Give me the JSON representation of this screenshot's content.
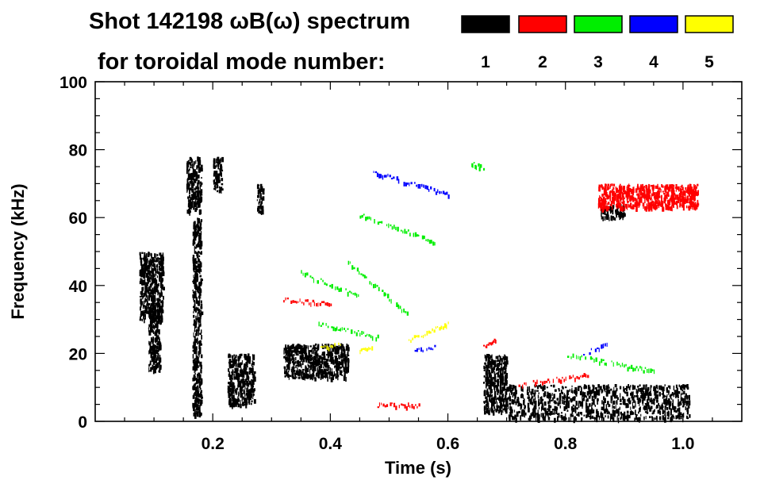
{
  "chart_data": {
    "type": "scatter",
    "title_line1": "Shot 142198 ωB(ω) spectrum",
    "title_line2": "for toroidal mode number:",
    "xlabel": "Time (s)",
    "ylabel": "Frequency (kHz)",
    "xlim": [
      0.0,
      1.1
    ],
    "ylim": [
      0,
      100
    ],
    "x_ticks": [
      0.2,
      0.4,
      0.6,
      0.8,
      1.0
    ],
    "x_tick_labels": [
      "0.2",
      "0.4",
      "0.6",
      "0.8",
      "1.0"
    ],
    "y_ticks": [
      0,
      20,
      40,
      60,
      80,
      100
    ],
    "y_tick_labels": [
      "0",
      "20",
      "40",
      "60",
      "80",
      "100"
    ],
    "legend": [
      {
        "n": "1",
        "color": "#000000"
      },
      {
        "n": "2",
        "color": "#ff0000"
      },
      {
        "n": "3",
        "color": "#00ee00"
      },
      {
        "n": "4",
        "color": "#0000ff"
      },
      {
        "n": "5",
        "color": "#ffff00"
      }
    ],
    "series": [
      {
        "name": "n=1",
        "color": "#000000",
        "regions": [
          {
            "x": [
              0.075,
              0.115
            ],
            "y": [
              30,
              50
            ]
          },
          {
            "x": [
              0.09,
              0.11
            ],
            "y": [
              15,
              35
            ]
          },
          {
            "x": [
              0.155,
              0.18
            ],
            "y": [
              62,
              78
            ]
          },
          {
            "x": [
              0.165,
              0.18
            ],
            "y": [
              2,
              60
            ]
          },
          {
            "x": [
              0.2,
              0.215
            ],
            "y": [
              68,
              78
            ]
          },
          {
            "x": [
              0.225,
              0.27
            ],
            "y": [
              5,
              20
            ]
          },
          {
            "x": [
              0.275,
              0.285
            ],
            "y": [
              62,
              70
            ]
          },
          {
            "x": [
              0.32,
              0.43
            ],
            "y": [
              13,
              23
            ]
          },
          {
            "x": [
              0.66,
              0.7
            ],
            "y": [
              3,
              20
            ]
          },
          {
            "x": [
              0.7,
              1.01
            ],
            "y": [
              1,
              11
            ]
          },
          {
            "x": [
              0.86,
              0.9
            ],
            "y": [
              60,
              64
            ]
          }
        ]
      },
      {
        "name": "n=2",
        "color": "#ff0000",
        "lines": [
          {
            "x": [
              0.32,
              0.4
            ],
            "y": [
              36,
              35
            ]
          },
          {
            "x": [
              0.48,
              0.55
            ],
            "y": [
              5,
              5
            ]
          },
          {
            "x": [
              0.72,
              0.84
            ],
            "y": [
              11,
              14
            ]
          },
          {
            "x": [
              0.66,
              0.68
            ],
            "y": [
              22,
              24
            ]
          }
        ],
        "regions": [
          {
            "x": [
              0.855,
              1.025
            ],
            "y": [
              63,
              70
            ]
          }
        ]
      },
      {
        "name": "n=3",
        "color": "#00ee00",
        "lines": [
          {
            "x": [
              0.45,
              0.58
            ],
            "y": [
              61,
              53
            ]
          },
          {
            "x": [
              0.35,
              0.45
            ],
            "y": [
              44,
              37
            ]
          },
          {
            "x": [
              0.43,
              0.53
            ],
            "y": [
              47,
              32
            ]
          },
          {
            "x": [
              0.38,
              0.48
            ],
            "y": [
              29,
              25
            ]
          },
          {
            "x": [
              0.8,
              0.95
            ],
            "y": [
              20,
              15
            ]
          },
          {
            "x": [
              0.64,
              0.66
            ],
            "y": [
              76,
              75
            ]
          }
        ]
      },
      {
        "name": "n=4",
        "color": "#0000ff",
        "lines": [
          {
            "x": [
              0.47,
              0.6
            ],
            "y": [
              74,
              67
            ]
          },
          {
            "x": [
              0.54,
              0.58
            ],
            "y": [
              21,
              22
            ]
          },
          {
            "x": [
              0.83,
              0.87
            ],
            "y": [
              20,
              23
            ]
          }
        ]
      },
      {
        "name": "n=5",
        "color": "#ffff00",
        "lines": [
          {
            "x": [
              0.53,
              0.6
            ],
            "y": [
              24,
              29
            ]
          },
          {
            "x": [
              0.38,
              0.42
            ],
            "y": [
              22,
              23
            ]
          },
          {
            "x": [
              0.45,
              0.47
            ],
            "y": [
              21,
              22
            ]
          }
        ]
      }
    ]
  }
}
